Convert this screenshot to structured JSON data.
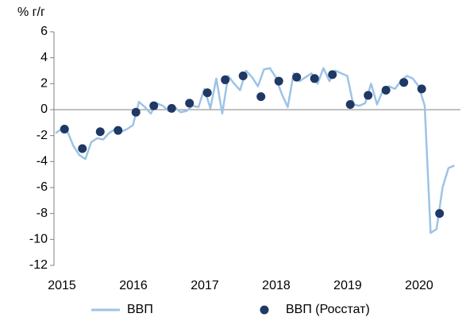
{
  "chart_data": {
    "type": "line",
    "y_label": "% г/г",
    "xlim": [
      2015,
      2020.667
    ],
    "xticks": [
      2015,
      2016,
      2017,
      2018,
      2019,
      2020
    ],
    "ylim": [
      -12,
      6
    ],
    "yticks": [
      -12,
      -10,
      -8,
      -6,
      -4,
      -2,
      0,
      2,
      4,
      6
    ],
    "grid": false,
    "legend": "bottom",
    "series": [
      {
        "name": "ВВП",
        "color": "#9dc3e6",
        "mark": "line",
        "x": [
          2015,
          2015.083,
          2015.167,
          2015.25,
          2015.333,
          2015.417,
          2015.5,
          2015.583,
          2015.667,
          2015.75,
          2015.833,
          2015.917,
          2016,
          2016.083,
          2016.167,
          2016.25,
          2016.333,
          2016.417,
          2016.5,
          2016.583,
          2016.667,
          2016.75,
          2016.833,
          2016.917,
          2017,
          2017.083,
          2017.167,
          2017.25,
          2017.333,
          2017.417,
          2017.5,
          2017.583,
          2017.667,
          2017.75,
          2017.833,
          2017.917,
          2018,
          2018.083,
          2018.167,
          2018.25,
          2018.333,
          2018.417,
          2018.5,
          2018.583,
          2018.667,
          2018.75,
          2018.833,
          2018.917,
          2019,
          2019.083,
          2019.167,
          2019.25,
          2019.333,
          2019.417,
          2019.5,
          2019.583,
          2019.667,
          2019.75,
          2019.833,
          2019.917,
          2020,
          2020.083,
          2020.167,
          2020.25,
          2020.333,
          2020.417,
          2020.5,
          2020.583
        ],
        "values": [
          -1.8,
          -1.5,
          -1.7,
          -2.8,
          -3.5,
          -3.8,
          -2.5,
          -2.2,
          -2.3,
          -1.8,
          -1.5,
          -1.7,
          -1.5,
          -1.2,
          0.6,
          0.2,
          -0.3,
          0.5,
          0.3,
          -0.1,
          0.2,
          -0.2,
          -0.1,
          0.3,
          0.2,
          1.6,
          0.1,
          2.4,
          -0.3,
          2.6,
          2.0,
          1.5,
          3.0,
          2.5,
          1.8,
          3.1,
          3.2,
          2.5,
          1.2,
          0.2,
          2.8,
          2.2,
          2.5,
          2.8,
          2.0,
          3.2,
          2.2,
          3.0,
          2.8,
          2.6,
          0.4,
          0.3,
          0.5,
          2.0,
          0.4,
          1.5,
          1.8,
          1.6,
          2.2,
          2.6,
          2.4,
          1.8,
          0.3,
          -9.5,
          -9.2,
          -6.0,
          -4.5,
          -4.3
        ]
      },
      {
        "name": "ВВП (Росстат)",
        "color": "#1f3864",
        "mark": "dot",
        "x": [
          2015.125,
          2015.375,
          2015.625,
          2015.875,
          2016.125,
          2016.375,
          2016.625,
          2016.875,
          2017.125,
          2017.375,
          2017.625,
          2017.875,
          2018.125,
          2018.375,
          2018.625,
          2018.875,
          2019.125,
          2019.375,
          2019.625,
          2019.875,
          2020.125,
          2020.375
        ],
        "values": [
          -1.5,
          -3.0,
          -1.7,
          -1.6,
          -0.2,
          0.3,
          0.1,
          0.5,
          1.3,
          2.3,
          2.6,
          1.0,
          2.2,
          2.5,
          2.4,
          2.7,
          0.4,
          1.1,
          1.5,
          2.1,
          1.6,
          -8.0
        ]
      }
    ]
  }
}
